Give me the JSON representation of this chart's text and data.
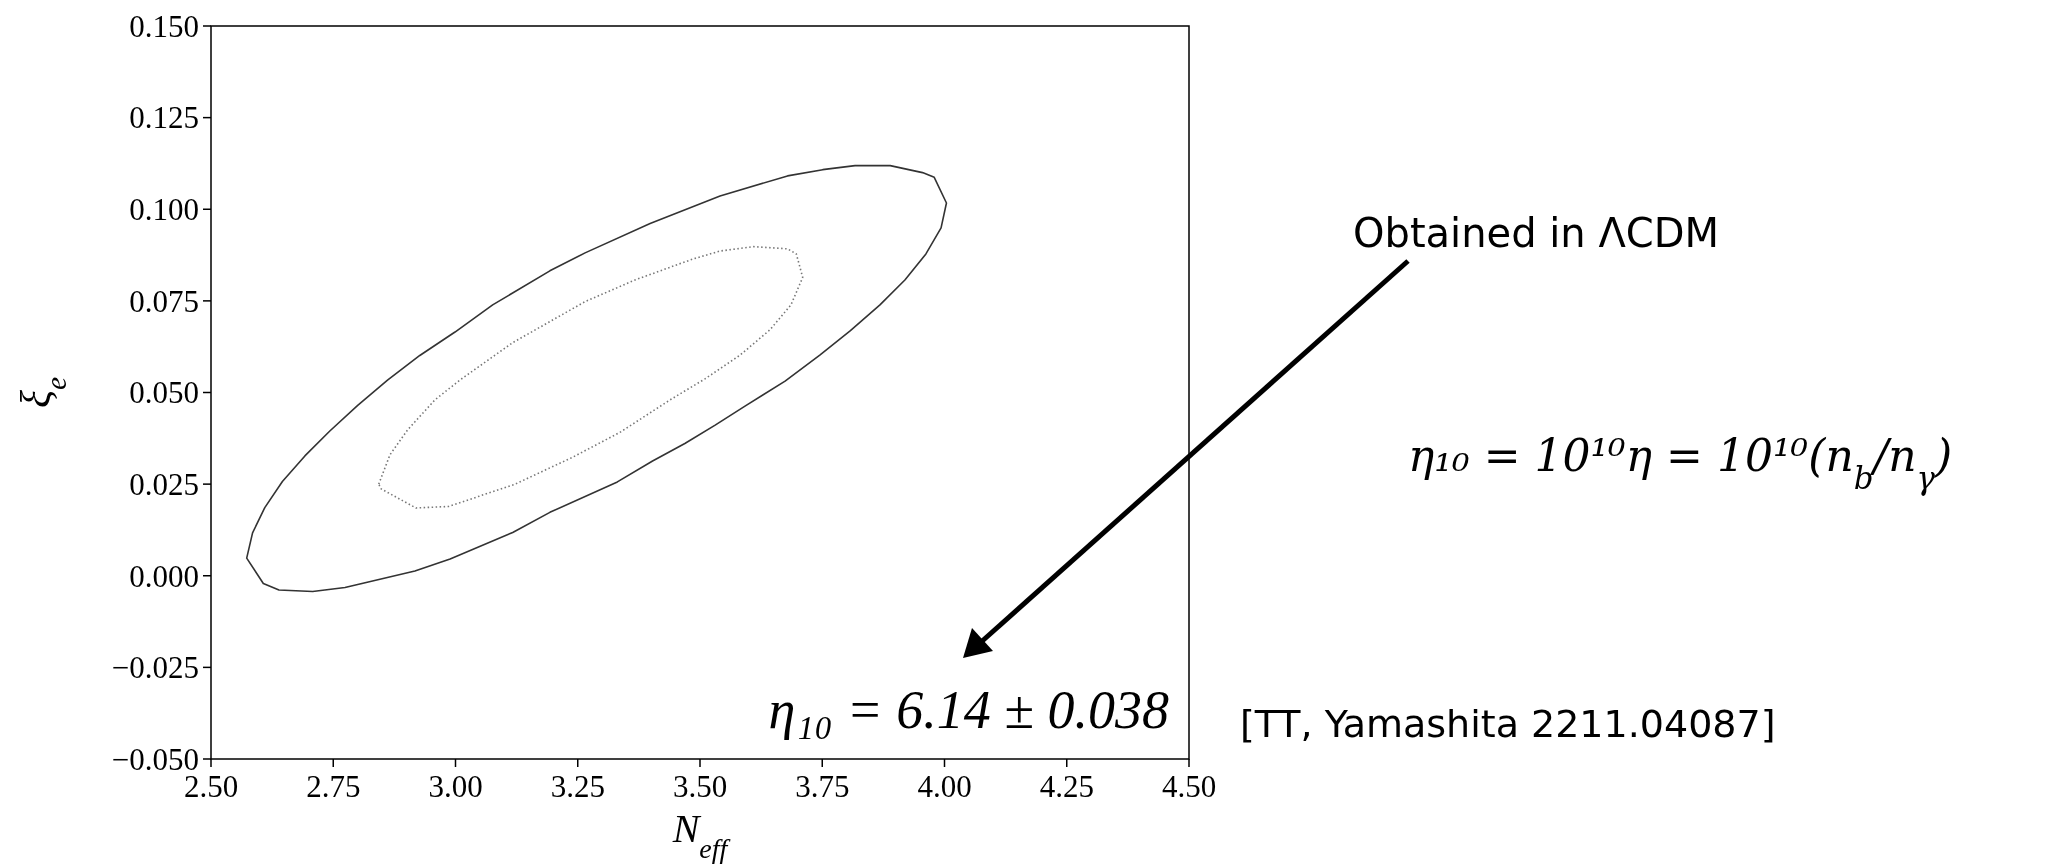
{
  "chart_data": {
    "type": "line",
    "xlabel": "N$_{eff}$",
    "ylabel": "ξ$_{e}$",
    "xlim": [
      2.5,
      4.5
    ],
    "xticks": [
      {
        "value": 2.5,
        "label": "2.50"
      },
      {
        "value": 2.75,
        "label": "2.75"
      },
      {
        "value": 3,
        "label": "3.00"
      },
      {
        "value": 3.25,
        "label": "3.25"
      },
      {
        "value": 3.5,
        "label": "3.50"
      },
      {
        "value": 3.75,
        "label": "3.75"
      },
      {
        "value": 4,
        "label": "4.00"
      },
      {
        "value": 4.25,
        "label": "4.25"
      },
      {
        "value": 4.5,
        "label": "4.50"
      }
    ],
    "ylim": [
      -0.05,
      0.15
    ],
    "yticks": [
      {
        "value": -0.05,
        "label": "−0.050"
      },
      {
        "value": -0.025,
        "label": "−0.025"
      },
      {
        "value": 0,
        "label": "0.000"
      },
      {
        "value": 0.025,
        "label": "0.025"
      },
      {
        "value": 0.05,
        "label": "0.050"
      },
      {
        "value": 0.075,
        "label": "0.075"
      },
      {
        "value": 0.1,
        "label": "0.100"
      },
      {
        "value": 0.125,
        "label": "0.125"
      },
      {
        "value": 0.15,
        "label": "0.150"
      }
    ],
    "annotations": [
      "η₁₀ = 6.14 ± 0.038",
      "Obtained in ΛCDM",
      "η₁₀ = 10¹⁰η = 10¹⁰(n$_{b}$/n$_{γ}$)",
      "[TT, Yamashita 2211.04087]"
    ]
  }
}
